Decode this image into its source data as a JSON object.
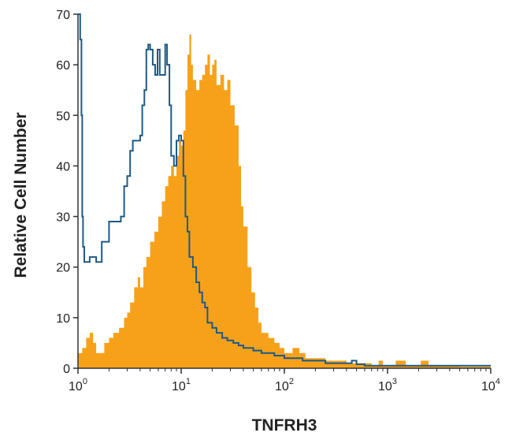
{
  "chart_data": {
    "type": "area",
    "title": "",
    "xlabel": "TNFRH3",
    "ylabel": "Relative Cell Number",
    "x_scale": "log",
    "xlim": [
      1,
      10000
    ],
    "ylim": [
      0,
      70
    ],
    "grid": false,
    "x_ticks": [
      {
        "value": 1,
        "base": "10",
        "exp": "0"
      },
      {
        "value": 10,
        "base": "10",
        "exp": "1"
      },
      {
        "value": 100,
        "base": "10",
        "exp": "2"
      },
      {
        "value": 1000,
        "base": "10",
        "exp": "3"
      },
      {
        "value": 10000,
        "base": "10",
        "exp": "4"
      }
    ],
    "y_ticks": [
      {
        "value": 0,
        "label": "0"
      },
      {
        "value": 10,
        "label": "10"
      },
      {
        "value": 20,
        "label": "20"
      },
      {
        "value": 30,
        "label": "30"
      },
      {
        "value": 40,
        "label": "40"
      },
      {
        "value": 50,
        "label": "50"
      },
      {
        "value": 60,
        "label": "60"
      },
      {
        "value": 70,
        "label": "70"
      }
    ],
    "series": [
      {
        "style": "filled",
        "color": "#f7a11a",
        "points": [
          [
            1.0,
            3
          ],
          [
            1.1,
            4
          ],
          [
            1.2,
            6
          ],
          [
            1.3,
            7
          ],
          [
            1.4,
            5
          ],
          [
            1.5,
            3
          ],
          [
            1.6,
            3
          ],
          [
            1.8,
            5
          ],
          [
            2.0,
            6
          ],
          [
            2.2,
            7
          ],
          [
            2.5,
            8
          ],
          [
            2.8,
            10
          ],
          [
            3.0,
            11
          ],
          [
            3.2,
            13
          ],
          [
            3.5,
            16
          ],
          [
            3.8,
            18
          ],
          [
            4.0,
            16
          ],
          [
            4.3,
            20
          ],
          [
            4.6,
            22
          ],
          [
            5.0,
            25
          ],
          [
            5.5,
            27
          ],
          [
            6.0,
            30
          ],
          [
            6.5,
            33
          ],
          [
            7.0,
            36
          ],
          [
            7.5,
            38
          ],
          [
            8.0,
            40
          ],
          [
            8.5,
            38
          ],
          [
            9.0,
            42
          ],
          [
            9.5,
            45
          ],
          [
            10.0,
            44
          ],
          [
            10.5,
            47
          ],
          [
            11.0,
            55
          ],
          [
            11.5,
            62
          ],
          [
            12.0,
            66
          ],
          [
            12.5,
            60
          ],
          [
            13.0,
            57
          ],
          [
            14.0,
            55
          ],
          [
            15.0,
            57
          ],
          [
            16.0,
            58
          ],
          [
            17.0,
            60
          ],
          [
            18.0,
            62
          ],
          [
            19.0,
            58
          ],
          [
            20.0,
            60
          ],
          [
            21.0,
            61
          ],
          [
            22.0,
            56
          ],
          [
            24.0,
            58
          ],
          [
            26.0,
            55
          ],
          [
            28.0,
            57
          ],
          [
            30.0,
            52
          ],
          [
            33.0,
            48
          ],
          [
            36.0,
            40
          ],
          [
            38.0,
            32
          ],
          [
            40.0,
            28
          ],
          [
            44.0,
            20
          ],
          [
            48.0,
            15
          ],
          [
            52.0,
            12
          ],
          [
            56.0,
            9
          ],
          [
            60.0,
            7
          ],
          [
            70.0,
            6
          ],
          [
            80.0,
            5
          ],
          [
            90.0,
            4
          ],
          [
            100.0,
            3
          ],
          [
            120.0,
            4
          ],
          [
            140.0,
            3
          ],
          [
            160.0,
            2
          ],
          [
            200.0,
            2
          ],
          [
            250.0,
            1.5
          ],
          [
            300.0,
            1.5
          ],
          [
            400.0,
            1
          ],
          [
            500.0,
            1
          ],
          [
            700.0,
            0.5
          ],
          [
            820.0,
            1.5
          ],
          [
            900.0,
            0.5
          ],
          [
            1000.0,
            0.5
          ],
          [
            1200.0,
            1.5
          ],
          [
            1500.0,
            0.5
          ],
          [
            2100.0,
            1.5
          ],
          [
            2500.0,
            0.5
          ],
          [
            5000.0,
            0.3
          ],
          [
            10000.0,
            0.3
          ]
        ]
      },
      {
        "style": "outline",
        "color": "#1d5a86",
        "points": [
          [
            1.0,
            70
          ],
          [
            1.05,
            65
          ],
          [
            1.08,
            50
          ],
          [
            1.1,
            30
          ],
          [
            1.12,
            24
          ],
          [
            1.15,
            21
          ],
          [
            1.3,
            22
          ],
          [
            1.5,
            21
          ],
          [
            1.7,
            25
          ],
          [
            2.0,
            29
          ],
          [
            2.3,
            29
          ],
          [
            2.6,
            30
          ],
          [
            2.8,
            36
          ],
          [
            3.0,
            38
          ],
          [
            3.2,
            43
          ],
          [
            3.4,
            45
          ],
          [
            3.7,
            45
          ],
          [
            4.0,
            46
          ],
          [
            4.2,
            52
          ],
          [
            4.4,
            55
          ],
          [
            4.6,
            63
          ],
          [
            4.8,
            64
          ],
          [
            5.0,
            63
          ],
          [
            5.3,
            60
          ],
          [
            5.6,
            58
          ],
          [
            5.9,
            63
          ],
          [
            6.2,
            58
          ],
          [
            6.6,
            58
          ],
          [
            7.0,
            64
          ],
          [
            7.3,
            60
          ],
          [
            7.7,
            52
          ],
          [
            8.0,
            42
          ],
          [
            8.5,
            40
          ],
          [
            9.0,
            45
          ],
          [
            9.5,
            46
          ],
          [
            10.0,
            45
          ],
          [
            10.5,
            38
          ],
          [
            11.0,
            30
          ],
          [
            11.5,
            27
          ],
          [
            12.0,
            22
          ],
          [
            13.0,
            20
          ],
          [
            14.0,
            17
          ],
          [
            15.0,
            15
          ],
          [
            16.0,
            13
          ],
          [
            17.0,
            12
          ],
          [
            18.0,
            9
          ],
          [
            20.0,
            8
          ],
          [
            22.0,
            7
          ],
          [
            25.0,
            6
          ],
          [
            28.0,
            5.5
          ],
          [
            32.0,
            5
          ],
          [
            36.0,
            4.5
          ],
          [
            40.0,
            4
          ],
          [
            50.0,
            3.5
          ],
          [
            60.0,
            3
          ],
          [
            70.0,
            3
          ],
          [
            80.0,
            2.5
          ],
          [
            100.0,
            2
          ],
          [
            120.0,
            2
          ],
          [
            150.0,
            1.5
          ],
          [
            200.0,
            1.5
          ],
          [
            250.0,
            1
          ],
          [
            300.0,
            1
          ],
          [
            400.0,
            1
          ],
          [
            450.0,
            1.5
          ],
          [
            500.0,
            0.8
          ],
          [
            600.0,
            0.5
          ],
          [
            800.0,
            0.5
          ],
          [
            1000.0,
            0.5
          ],
          [
            2000.0,
            0.5
          ],
          [
            5000.0,
            0.5
          ],
          [
            10000.0,
            0.5
          ]
        ]
      }
    ]
  }
}
